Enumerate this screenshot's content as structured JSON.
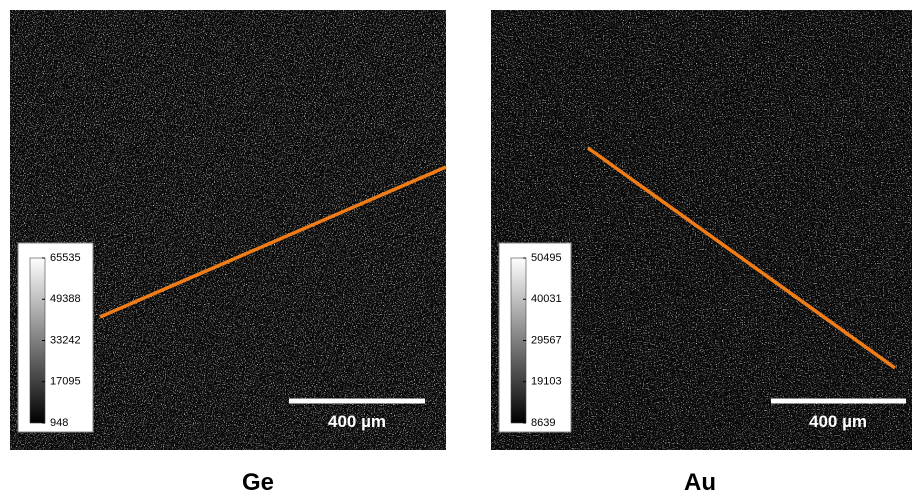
{
  "panels": [
    {
      "label": "Ge",
      "colorbar_ticks": [
        65535,
        49388,
        33242,
        17095,
        948
      ],
      "scale_bar": "400 µm"
    },
    {
      "label": "Au",
      "colorbar_ticks": [
        50495,
        40031,
        29567,
        19103,
        8639
      ],
      "scale_bar": "400 µm"
    }
  ]
}
